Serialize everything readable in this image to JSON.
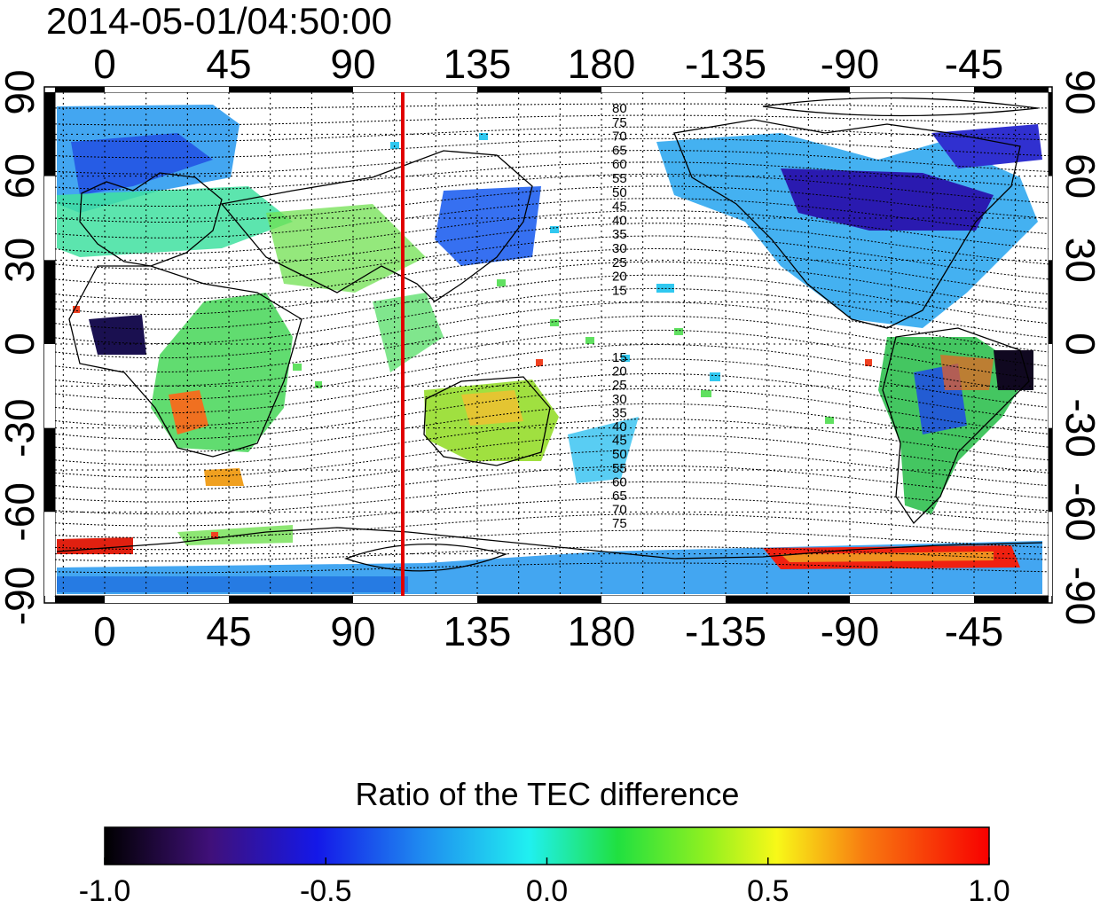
{
  "timestamp": "2014-05-01/04:50:00",
  "map": {
    "x_ticks_top": [
      "0",
      "45",
      "90",
      "135",
      "180",
      "-135",
      "-90",
      "-45"
    ],
    "x_ticks_bottom": [
      "0",
      "45",
      "90",
      "135",
      "180",
      "-135",
      "-90",
      "-45"
    ],
    "y_ticks_left": [
      "90",
      "60",
      "30",
      "0",
      "-30",
      "-60",
      "-90"
    ],
    "y_ticks_right": [
      "90",
      "60",
      "30",
      "0",
      "-30",
      "-60",
      "-90"
    ],
    "longitude_range": [
      -18,
      342
    ],
    "latitude_range": [
      -90,
      90
    ],
    "grid": "dotted",
    "marker_longitude": 108,
    "marker_color": "#e00000",
    "magnetic_latitude_labels_north": [
      "80",
      "75",
      "70",
      "65",
      "60",
      "55",
      "50",
      "45",
      "40",
      "35",
      "30",
      "25",
      "20",
      "15"
    ],
    "magnetic_latitude_labels_south": [
      "15",
      "20",
      "25",
      "30",
      "35",
      "40",
      "45",
      "50",
      "55",
      "60",
      "65",
      "70",
      "75"
    ]
  },
  "colorbar": {
    "title": "Ratio of the TEC difference",
    "ticks": [
      "-1.0",
      "-0.5",
      "0.0",
      "0.5",
      "1.0"
    ],
    "range": [
      -1.0,
      1.0
    ],
    "stops": [
      "#000000",
      "#40107a",
      "#1418e8",
      "#1f8cf0",
      "#20f0f0",
      "#20e040",
      "#90f020",
      "#f8f818",
      "#f87a10",
      "#f80000"
    ]
  }
}
